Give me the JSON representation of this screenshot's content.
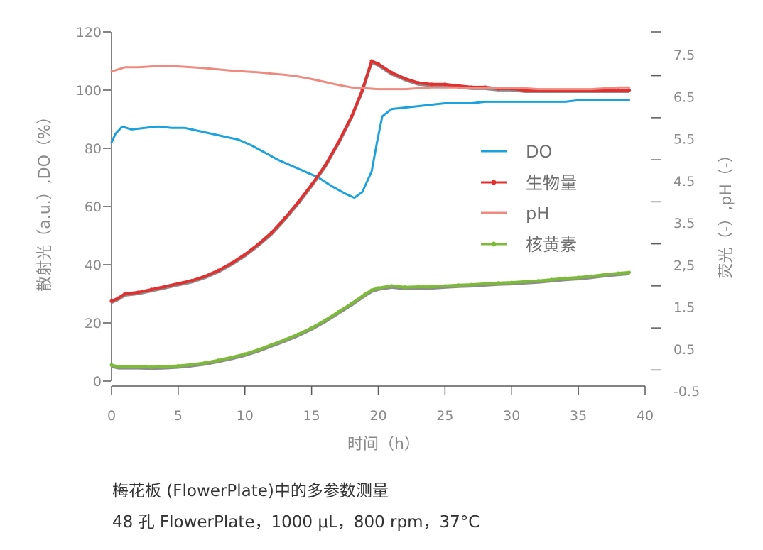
{
  "chart_data": {
    "type": "line",
    "xlabel": "时间（h）",
    "ylabel_left": "散射光（a.u.）,DO（%）",
    "ylabel_right": "荧光（-）,pH（-）",
    "xlim": [
      0,
      40
    ],
    "ylim_left": [
      0,
      120
    ],
    "ylim_right": [
      -0.5,
      7.5
    ],
    "x_ticks": [
      0,
      5,
      10,
      15,
      20,
      25,
      30,
      35,
      40
    ],
    "y_left_ticks": [
      0,
      20,
      40,
      60,
      80,
      100,
      120
    ],
    "y_right_tick_labels": [
      "-0.5",
      "0.5",
      "1.5",
      "2,5",
      "3.5",
      "4.5",
      "5.5",
      "6.5",
      "7.5"
    ],
    "grid": false,
    "legend_position": "center-right",
    "series": [
      {
        "name": "DO",
        "axis": "left",
        "color": "#1ba1dc",
        "marker": false,
        "x": [
          0,
          0.3,
          0.8,
          1.5,
          2.5,
          3.5,
          4.5,
          5.5,
          6.5,
          7.5,
          8.5,
          9.5,
          10.5,
          11.5,
          12.5,
          13.5,
          14.5,
          15.5,
          16.5,
          17.5,
          18.2,
          18.8,
          19.5,
          19.9,
          20.3,
          21,
          22,
          23,
          24,
          25,
          26,
          27,
          28,
          29,
          30,
          31,
          32,
          33,
          34,
          35,
          36,
          37,
          38,
          38.8
        ],
        "y": [
          82,
          85,
          87.5,
          86.5,
          87,
          87.5,
          87,
          87,
          86,
          85,
          84,
          83,
          81,
          78.5,
          76,
          74,
          72,
          70,
          67,
          64.5,
          63,
          65,
          72,
          82,
          91,
          93.5,
          94,
          94.5,
          95,
          95.5,
          95.5,
          95.5,
          96,
          96,
          96,
          96,
          96,
          96,
          96,
          96.5,
          96.5,
          96.5,
          96.5,
          96.5
        ]
      },
      {
        "name": "生物量",
        "axis": "left",
        "color": "#e03030",
        "marker": true,
        "x": [
          0,
          0.5,
          1,
          2,
          3,
          4,
          5,
          6,
          7,
          8,
          9,
          10,
          11,
          12,
          13,
          14,
          15,
          16,
          17,
          18,
          18.8,
          19.5,
          20,
          21,
          22,
          23,
          24,
          25,
          26,
          27,
          28,
          29,
          30,
          31,
          32,
          33,
          34,
          35,
          36,
          37,
          38,
          38.8
        ],
        "y": [
          27.5,
          28.5,
          30,
          30.5,
          31.5,
          32.5,
          33.5,
          34.5,
          36,
          38,
          40.5,
          43.5,
          47,
          51,
          56,
          61.5,
          67.5,
          74,
          82,
          91,
          100,
          110,
          109,
          106,
          104,
          102.5,
          102,
          102,
          101.5,
          101,
          101,
          100.5,
          100.5,
          100,
          100,
          100,
          100,
          100,
          100,
          100,
          100,
          100
        ]
      },
      {
        "name": "pH",
        "axis": "right",
        "color": "#ee8a80",
        "marker": false,
        "x": [
          0,
          1,
          2,
          3,
          4,
          5,
          6,
          7,
          8,
          9,
          10,
          11,
          12,
          13,
          14,
          15,
          16,
          17,
          18,
          19,
          20,
          21,
          22,
          23,
          24,
          25,
          26,
          27,
          28,
          29,
          30,
          31,
          32,
          33,
          34,
          35,
          36,
          37,
          38,
          38.8
        ],
        "y": [
          7.1,
          7.2,
          7.2,
          7.22,
          7.24,
          7.22,
          7.2,
          7.18,
          7.15,
          7.12,
          7.1,
          7.08,
          7.05,
          7.02,
          6.98,
          6.92,
          6.85,
          6.78,
          6.72,
          6.7,
          6.68,
          6.68,
          6.68,
          6.7,
          6.72,
          6.72,
          6.72,
          6.7,
          6.7,
          6.7,
          6.7,
          6.7,
          6.68,
          6.68,
          6.68,
          6.68,
          6.68,
          6.7,
          6.72,
          6.72
        ]
      },
      {
        "name": "核黄素",
        "axis": "right",
        "color": "#7dba3a",
        "marker": true,
        "x": [
          0,
          0.5,
          1,
          2,
          3,
          4,
          5,
          6,
          7,
          8,
          9,
          10,
          11,
          12,
          13,
          14,
          15,
          16,
          17,
          18,
          19,
          19.5,
          20,
          21,
          22,
          23,
          24,
          25,
          26,
          27,
          28,
          29,
          30,
          31,
          32,
          33,
          34,
          35,
          36,
          37,
          38,
          38.8
        ],
        "y": [
          0.12,
          0.08,
          0.08,
          0.08,
          0.07,
          0.08,
          0.1,
          0.13,
          0.17,
          0.23,
          0.3,
          0.38,
          0.48,
          0.6,
          0.72,
          0.85,
          1.0,
          1.18,
          1.38,
          1.58,
          1.8,
          1.9,
          1.95,
          2.0,
          1.97,
          1.98,
          1.98,
          2.0,
          2.02,
          2.03,
          2.05,
          2.07,
          2.08,
          2.1,
          2.12,
          2.15,
          2.18,
          2.2,
          2.23,
          2.27,
          2.3,
          2.32
        ]
      }
    ]
  },
  "caption": {
    "line1": "梅花板 (FlowerPlate)中的多参数测量",
    "line2": "48 孔 FlowerPlate，1000 μL，800 rpm，37°C"
  }
}
